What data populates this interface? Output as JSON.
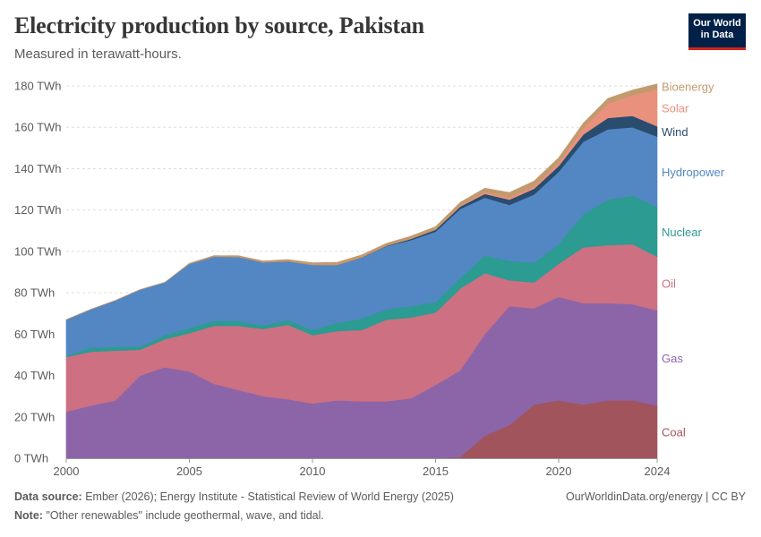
{
  "header": {
    "title": "Electricity production by source, Pakistan",
    "subtitle": "Measured in terawatt-hours."
  },
  "logo": {
    "line1": "Our World",
    "line2": "in Data"
  },
  "footer": {
    "source_label": "Data source:",
    "source_text": "Ember (2026); Energy Institute - Statistical Review of World Energy (2025)",
    "note_label": "Note:",
    "note_text": "\"Other renewables\" include geothermal, wave, and tidal.",
    "credit": "OurWorldinData.org/energy | CC BY"
  },
  "chart_data": {
    "type": "area",
    "stacked": true,
    "unit": "TWh",
    "x": [
      2000,
      2001,
      2002,
      2003,
      2004,
      2005,
      2006,
      2007,
      2008,
      2009,
      2010,
      2011,
      2012,
      2013,
      2014,
      2015,
      2016,
      2017,
      2018,
      2019,
      2020,
      2021,
      2022,
      2023,
      2024
    ],
    "x_ticks": [
      "2000",
      "2005",
      "2010",
      "2015",
      "2020",
      "2024"
    ],
    "y_ticks": [
      "0 TWh",
      "20 TWh",
      "40 TWh",
      "60 TWh",
      "80 TWh",
      "100 TWh",
      "120 TWh",
      "140 TWh",
      "160 TWh",
      "180 TWh"
    ],
    "ylim": [
      0,
      180
    ],
    "grid": true,
    "legend_position": "right, labels at series ends",
    "series": [
      {
        "name": "Coal",
        "color": "#a2545c",
        "values": [
          0,
          0,
          0,
          0,
          0,
          0,
          0,
          0,
          0,
          0,
          0,
          0,
          0,
          0,
          0,
          0,
          0.5,
          11,
          16,
          26,
          28,
          26,
          28,
          28,
          25.5
        ]
      },
      {
        "name": "Gas",
        "color": "#8c65a9",
        "values": [
          22.5,
          25.5,
          28,
          40,
          44,
          42,
          36,
          33,
          30,
          28.5,
          26.5,
          28,
          27.5,
          27.5,
          29,
          35.5,
          42,
          49,
          57.5,
          46.5,
          50,
          49,
          47,
          46.5,
          46
        ]
      },
      {
        "name": "Oil",
        "color": "#cd7082",
        "values": [
          26.5,
          26,
          24,
          12.5,
          13.5,
          18.5,
          28,
          31,
          32.5,
          36,
          33,
          33.5,
          34.5,
          39.5,
          39,
          35,
          39.5,
          29.5,
          12.5,
          12.5,
          16,
          27,
          28,
          29,
          26
        ]
      },
      {
        "name": "Nuclear",
        "color": "#2c9b91",
        "values": [
          0.5,
          2,
          1.8,
          1.5,
          2,
          2.5,
          2.5,
          2.3,
          1.7,
          2.3,
          2.5,
          4,
          5.5,
          5,
          5.5,
          5,
          5,
          8.5,
          9.5,
          9.5,
          9.5,
          16,
          22,
          23.5,
          24
        ]
      },
      {
        "name": "Hydropower",
        "color": "#5287c4",
        "values": [
          17.5,
          18.5,
          22.5,
          27.5,
          25.5,
          31,
          31,
          31,
          30.5,
          28.5,
          31.5,
          28,
          29.5,
          30.5,
          32,
          34,
          33.5,
          28,
          27,
          33,
          35,
          35,
          34,
          33,
          34
        ]
      },
      {
        "name": "Wind",
        "color": "#2a4c6f",
        "values": [
          0,
          0,
          0,
          0,
          0,
          0,
          0,
          0,
          0,
          0,
          0,
          0,
          0.1,
          0.2,
          0.6,
          1,
          1.2,
          1.8,
          2.5,
          2.8,
          2.8,
          3.5,
          5.5,
          5.5,
          5
        ]
      },
      {
        "name": "Solar",
        "color": "#e9917c",
        "values": [
          0,
          0,
          0,
          0,
          0,
          0,
          0,
          0,
          0,
          0,
          0,
          0,
          0,
          0,
          0,
          0,
          0.5,
          0.8,
          1,
          1.2,
          1.5,
          3,
          7,
          10,
          18
        ]
      },
      {
        "name": "Bioenergy",
        "color": "#c39a6e",
        "values": [
          0,
          0,
          0,
          0,
          0,
          0.3,
          0.5,
          0.6,
          0.7,
          0.8,
          1,
          1.2,
          1.2,
          1.2,
          1.3,
          1.5,
          1.5,
          2,
          2.5,
          2.5,
          2.5,
          2.5,
          2.5,
          2.5,
          2.5
        ]
      }
    ]
  }
}
